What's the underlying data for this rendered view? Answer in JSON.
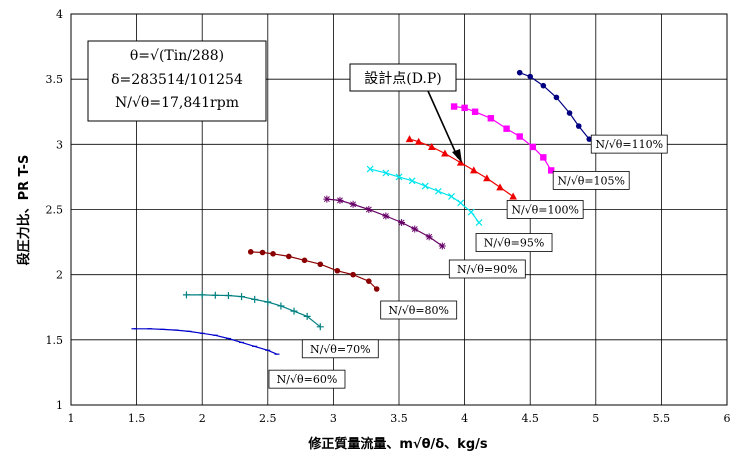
{
  "chart_data": {
    "type": "line",
    "xlabel": "修正質量流量、m√θ/δ、kg/s",
    "ylabel": "段圧力比、PR T-S",
    "xlim": [
      1,
      6
    ],
    "ylim": [
      1,
      4
    ],
    "xticks": [
      1,
      1.5,
      2,
      2.5,
      3,
      3.5,
      4,
      4.5,
      5,
      5.5,
      6
    ],
    "yticks": [
      1,
      1.5,
      2,
      2.5,
      3,
      3.5,
      4
    ],
    "xtick_labels": [
      "1",
      "1.5",
      "2",
      "2.5",
      "3",
      "3.5",
      "4",
      "4.5",
      "5",
      "5.5",
      "6"
    ],
    "ytick_labels": [
      "1",
      "1.5",
      "2",
      "2.5",
      "3",
      "3.5",
      "4"
    ],
    "grid": true,
    "info_box": {
      "line1": "θ=√(Tin/288)",
      "line2": "δ=283514/101254",
      "line3": "N/√θ=17,841rpm"
    },
    "design_point": {
      "label": "設計点(D.P)",
      "x": 3.97,
      "y": 2.86
    },
    "series": [
      {
        "name": "N/√θ=60%",
        "color": "#0000cc",
        "marker": "dash",
        "x": [
          1.48,
          1.6,
          1.7,
          1.8,
          1.9,
          2.0,
          2.1,
          2.2,
          2.3,
          2.4,
          2.5,
          2.57
        ],
        "y": [
          1.585,
          1.585,
          1.58,
          1.575,
          1.565,
          1.55,
          1.535,
          1.51,
          1.48,
          1.45,
          1.42,
          1.39
        ]
      },
      {
        "name": "N/√θ=70%",
        "color": "#008080",
        "marker": "plus",
        "x": [
          1.88,
          2.0,
          2.1,
          2.2,
          2.3,
          2.4,
          2.5,
          2.6,
          2.7,
          2.8,
          2.9
        ],
        "y": [
          1.845,
          1.845,
          1.842,
          1.84,
          1.832,
          1.81,
          1.79,
          1.76,
          1.72,
          1.68,
          1.6
        ]
      },
      {
        "name": "N/√θ=80%",
        "color": "#8b0000",
        "marker": "circle",
        "x": [
          2.37,
          2.46,
          2.54,
          2.66,
          2.78,
          2.9,
          3.03,
          3.15,
          3.27,
          3.33
        ],
        "y": [
          2.175,
          2.17,
          2.16,
          2.14,
          2.11,
          2.08,
          2.03,
          2.0,
          1.95,
          1.89
        ]
      },
      {
        "name": "N/√θ=90%",
        "color": "#660066",
        "marker": "asterisk",
        "x": [
          2.95,
          3.05,
          3.15,
          3.27,
          3.4,
          3.52,
          3.62,
          3.73,
          3.83
        ],
        "y": [
          2.58,
          2.57,
          2.54,
          2.5,
          2.45,
          2.4,
          2.35,
          2.29,
          2.22
        ]
      },
      {
        "name": "N/√θ=95%",
        "color": "#00e5ee",
        "marker": "x",
        "x": [
          3.28,
          3.4,
          3.5,
          3.6,
          3.7,
          3.8,
          3.9,
          3.97,
          4.05,
          4.11
        ],
        "y": [
          2.81,
          2.78,
          2.75,
          2.72,
          2.68,
          2.64,
          2.6,
          2.55,
          2.48,
          2.4
        ]
      },
      {
        "name": "N/√θ=100%",
        "color": "#ee0000",
        "marker": "triangle",
        "x": [
          3.58,
          3.65,
          3.75,
          3.85,
          3.97,
          4.07,
          4.17,
          4.27,
          4.37
        ],
        "y": [
          3.04,
          3.02,
          2.98,
          2.93,
          2.86,
          2.8,
          2.74,
          2.67,
          2.6
        ]
      },
      {
        "name": "N/√θ=105%",
        "color": "#ff00ff",
        "marker": "square",
        "x": [
          3.92,
          4.0,
          4.08,
          4.2,
          4.32,
          4.42,
          4.52,
          4.6,
          4.66
        ],
        "y": [
          3.29,
          3.28,
          3.25,
          3.2,
          3.12,
          3.06,
          2.98,
          2.9,
          2.8
        ]
      },
      {
        "name": "N/√θ=110%",
        "color": "#000080",
        "marker": "circle",
        "x": [
          4.42,
          4.5,
          4.6,
          4.7,
          4.8,
          4.87,
          4.95
        ],
        "y": [
          3.55,
          3.52,
          3.45,
          3.36,
          3.24,
          3.14,
          3.04
        ]
      }
    ]
  }
}
